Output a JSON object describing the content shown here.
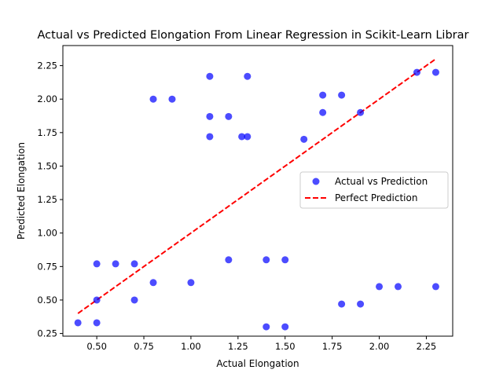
{
  "chart_data": {
    "type": "scatter",
    "title": "Actual vs Predicted Elongation From Linear Regression in Scikit-Learn Librar",
    "xlabel": "Actual Elongation",
    "ylabel": "Predicted Elongation",
    "xlim": [
      0.32,
      2.39
    ],
    "ylim": [
      0.23,
      2.4
    ],
    "x_ticks": [
      "0.50",
      "0.75",
      "1.00",
      "1.25",
      "1.50",
      "1.75",
      "2.00",
      "2.25"
    ],
    "y_ticks": [
      "0.25",
      "0.50",
      "0.75",
      "1.00",
      "1.25",
      "1.50",
      "1.75",
      "2.00",
      "2.25"
    ],
    "legend_position": "center-right",
    "grid": false,
    "series": [
      {
        "name": "Actual vs Prediction",
        "kind": "scatter",
        "color": "#0000ff",
        "x": [
          0.4,
          0.5,
          0.5,
          0.5,
          0.6,
          0.7,
          0.7,
          0.8,
          0.8,
          0.9,
          1.0,
          1.1,
          1.1,
          1.1,
          1.2,
          1.2,
          1.27,
          1.3,
          1.3,
          1.4,
          1.4,
          1.5,
          1.5,
          1.6,
          1.7,
          1.7,
          1.8,
          1.8,
          1.9,
          1.9,
          2.0,
          2.1,
          2.2,
          2.3,
          2.3
        ],
        "y": [
          0.33,
          0.33,
          0.5,
          0.77,
          0.77,
          0.5,
          0.77,
          0.63,
          2.0,
          2.0,
          0.63,
          1.72,
          1.87,
          2.17,
          0.8,
          1.87,
          1.72,
          1.72,
          2.17,
          0.3,
          0.8,
          0.3,
          0.8,
          1.7,
          1.9,
          2.03,
          0.47,
          2.03,
          0.47,
          1.9,
          0.6,
          0.6,
          2.2,
          0.6,
          2.2
        ]
      },
      {
        "name": "Perfect Prediction",
        "kind": "line",
        "color": "#ff0000",
        "dash": "dashed",
        "x": [
          0.4,
          2.3
        ],
        "y": [
          0.4,
          2.3
        ]
      }
    ]
  }
}
